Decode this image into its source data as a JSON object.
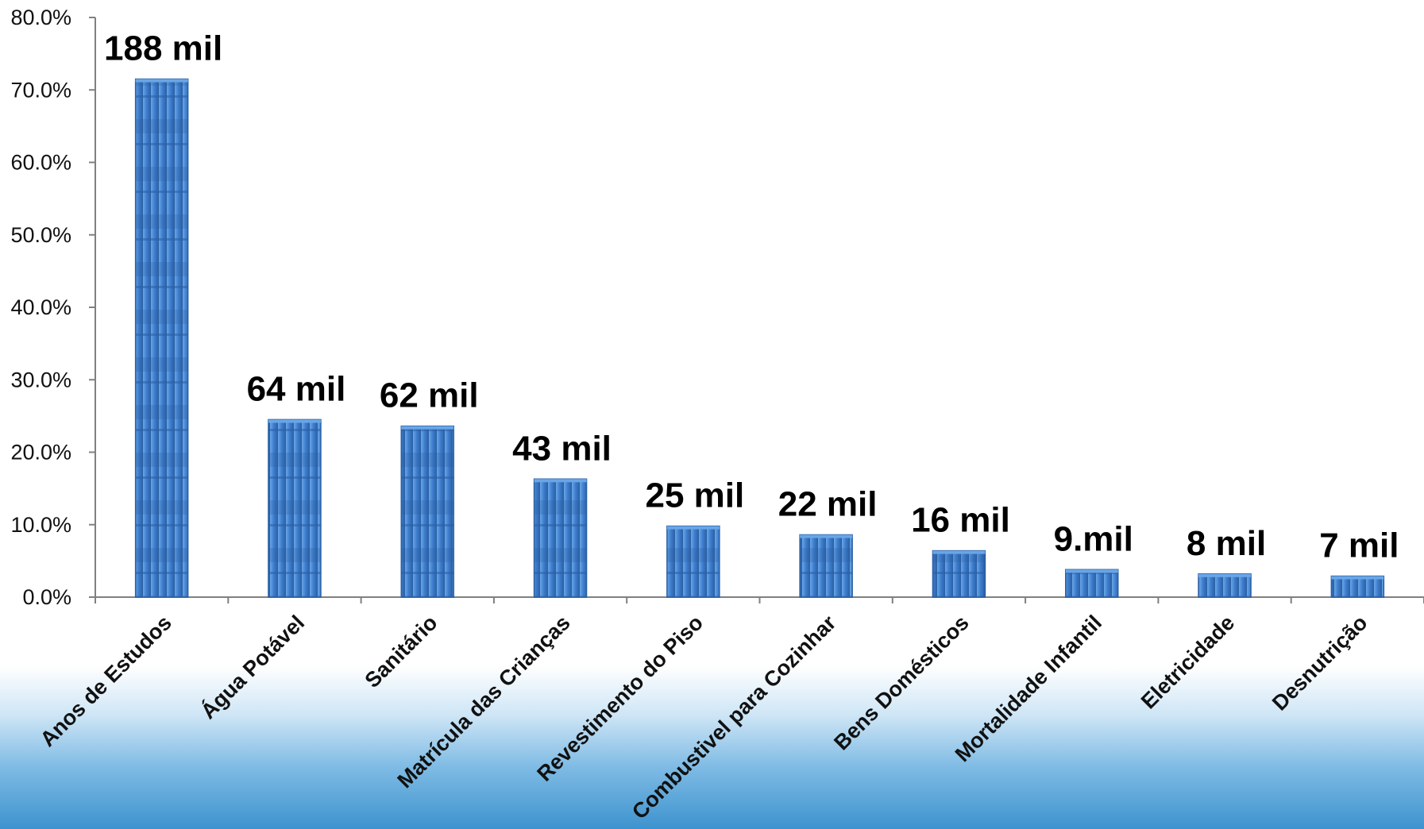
{
  "chart_data": {
    "type": "bar",
    "categories": [
      "Anos de Estudos",
      "Água Potável",
      "Sanitário",
      "Matrícula das Crianças",
      "Revestimento do Piso",
      "Combustivel para Cozinhar",
      "Bens Domésticos",
      "Mortalidade Infantil",
      "Eletricidade",
      "Desnutrição"
    ],
    "values": [
      71.5,
      24.5,
      23.6,
      16.3,
      9.8,
      8.6,
      6.4,
      3.8,
      3.2,
      2.9
    ],
    "data_labels": [
      "188 mil",
      "64 mil",
      "62 mil",
      "43 mil",
      "25 mil",
      "22 mil",
      "16 mil",
      "9.mil",
      "8 mil",
      "7 mil"
    ],
    "yticks": [
      "0.0%",
      "10.0%",
      "20.0%",
      "30.0%",
      "40.0%",
      "50.0%",
      "60.0%",
      "70.0%",
      "80.0%"
    ],
    "ylim": [
      0,
      80
    ],
    "title": "",
    "xlabel": "",
    "ylabel": "",
    "grid": false,
    "legend": "none",
    "colors": {
      "bar": "#3f7fcf",
      "bar_dark": "#2a5fa3",
      "bar_light": "#6aa6e6",
      "axis": "#808080"
    }
  }
}
